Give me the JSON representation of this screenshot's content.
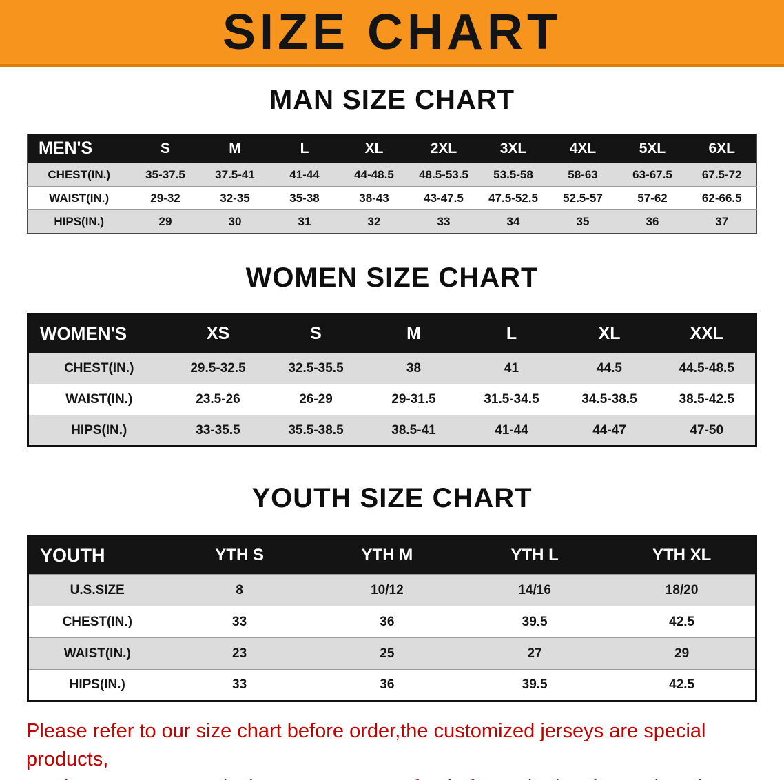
{
  "banner": {
    "title": "SIZE CHART",
    "bg_color": "#F7941E"
  },
  "sections": [
    {
      "title": "MAN SIZE CHART",
      "table": {
        "header_label": "MEN'S",
        "columns": [
          "S",
          "M",
          "L",
          "XL",
          "2XL",
          "3XL",
          "4XL",
          "5XL",
          "6XL"
        ],
        "rows": [
          {
            "label": "CHEST(IN.)",
            "values": [
              "35-37.5",
              "37.5-41",
              "41-44",
              "44-48.5",
              "48.5-53.5",
              "53.5-58",
              "58-63",
              "63-67.5",
              "67.5-72"
            ]
          },
          {
            "label": "WAIST(IN.)",
            "values": [
              "29-32",
              "32-35",
              "35-38",
              "38-43",
              "43-47.5",
              "47.5-52.5",
              "52.5-57",
              "57-62",
              "62-66.5"
            ]
          },
          {
            "label": "HIPS(IN.)",
            "values": [
              "29",
              "30",
              "31",
              "32",
              "33",
              "34",
              "35",
              "36",
              "37"
            ]
          }
        ]
      }
    },
    {
      "title": "WOMEN SIZE CHART",
      "table": {
        "header_label": "WOMEN'S",
        "columns": [
          "XS",
          "S",
          "M",
          "L",
          "XL",
          "XXL"
        ],
        "rows": [
          {
            "label": "CHEST(IN.)",
            "values": [
              "29.5-32.5",
              "32.5-35.5",
              "38",
              "41",
              "44.5",
              "44.5-48.5"
            ]
          },
          {
            "label": "WAIST(IN.)",
            "values": [
              "23.5-26",
              "26-29",
              "29-31.5",
              "31.5-34.5",
              "34.5-38.5",
              "38.5-42.5"
            ]
          },
          {
            "label": "HIPS(IN.)",
            "values": [
              "33-35.5",
              "35.5-38.5",
              "38.5-41",
              "41-44",
              "44-47",
              "47-50"
            ]
          }
        ]
      }
    },
    {
      "title": "YOUTH SIZE CHART",
      "table": {
        "header_label": "YOUTH",
        "columns": [
          "YTH S",
          "YTH M",
          "YTH L",
          "YTH XL"
        ],
        "rows": [
          {
            "label": "U.S.SIZE",
            "values": [
              "8",
              "10/12",
              "14/16",
              "18/20"
            ]
          },
          {
            "label": "CHEST(IN.)",
            "values": [
              "33",
              "36",
              "39.5",
              "42.5"
            ]
          },
          {
            "label": "WAIST(IN.)",
            "values": [
              "23",
              "25",
              "27",
              "29"
            ]
          },
          {
            "label": "HIPS(IN.)",
            "values": [
              "33",
              "36",
              "39.5",
              "42.5"
            ]
          }
        ]
      }
    }
  ],
  "footer": {
    "color": "#C40000",
    "lines": [
      "Please refer to our size chart before order,the customized jerseys are special products,",
      "we don't accept cancel, change, teturn or refund after order has been placed!"
    ]
  }
}
